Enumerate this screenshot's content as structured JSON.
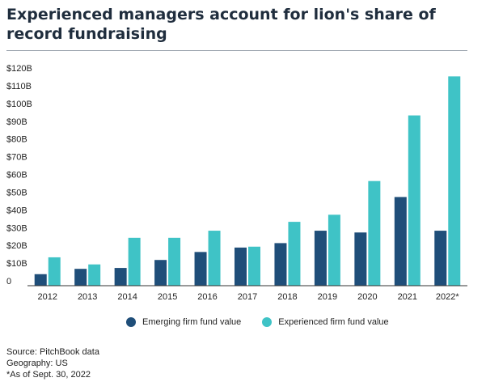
{
  "title": "Experienced managers account for lion's share of record fundraising",
  "chart_data": {
    "type": "bar",
    "categories": [
      "2012",
      "2013",
      "2014",
      "2015",
      "2016",
      "2017",
      "2018",
      "2019",
      "2020",
      "2021",
      "2022*"
    ],
    "series": [
      {
        "name": "Emerging firm fund value",
        "color": "#1f4e79",
        "values": [
          6.5,
          9.5,
          10,
          14.5,
          19,
          21.5,
          24,
          31,
          30,
          50,
          31
        ]
      },
      {
        "name": "Experienced firm fund value",
        "color": "#3fc3c6",
        "values": [
          16,
          12,
          27,
          27,
          31,
          22,
          36,
          40,
          59,
          96,
          118
        ]
      }
    ],
    "y_ticks": [
      "0",
      "$10B",
      "$20B",
      "$30B",
      "$40B",
      "$50B",
      "$60B",
      "$70B",
      "$80B",
      "$90B",
      "$100B",
      "$110B",
      "$120B"
    ],
    "ylim": [
      0,
      120
    ],
    "grid": false,
    "legend_position": "bottom"
  },
  "notes": {
    "source": "Source: PitchBook data",
    "geography": "Geography: US",
    "asof": "*As of Sept. 30, 2022"
  }
}
